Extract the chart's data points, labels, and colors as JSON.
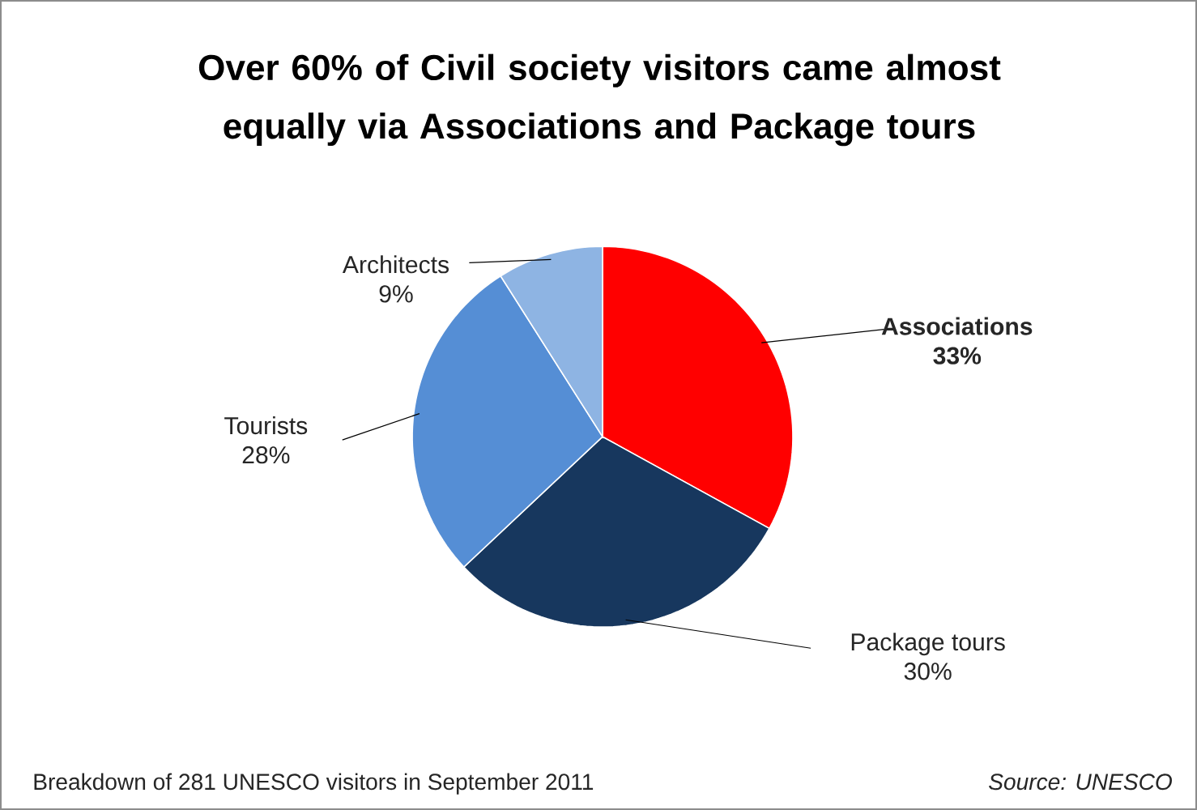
{
  "chart_data": {
    "type": "pie",
    "title": "Over 60% of Civil society visitors came almost equally via Associations and Package tours",
    "categories": [
      "Associations",
      "Package tours",
      "Tourists",
      "Architects"
    ],
    "values": [
      33,
      30,
      28,
      9
    ],
    "value_labels": [
      "33%",
      "30%",
      "28%",
      "9%"
    ],
    "colors": [
      "#ff0000",
      "#17375e",
      "#558ed5",
      "#8eb4e3"
    ],
    "annotations": [
      "Breakdown of 281 UNESCO visitors in September 2011",
      "Source: UNESCO"
    ]
  }
}
